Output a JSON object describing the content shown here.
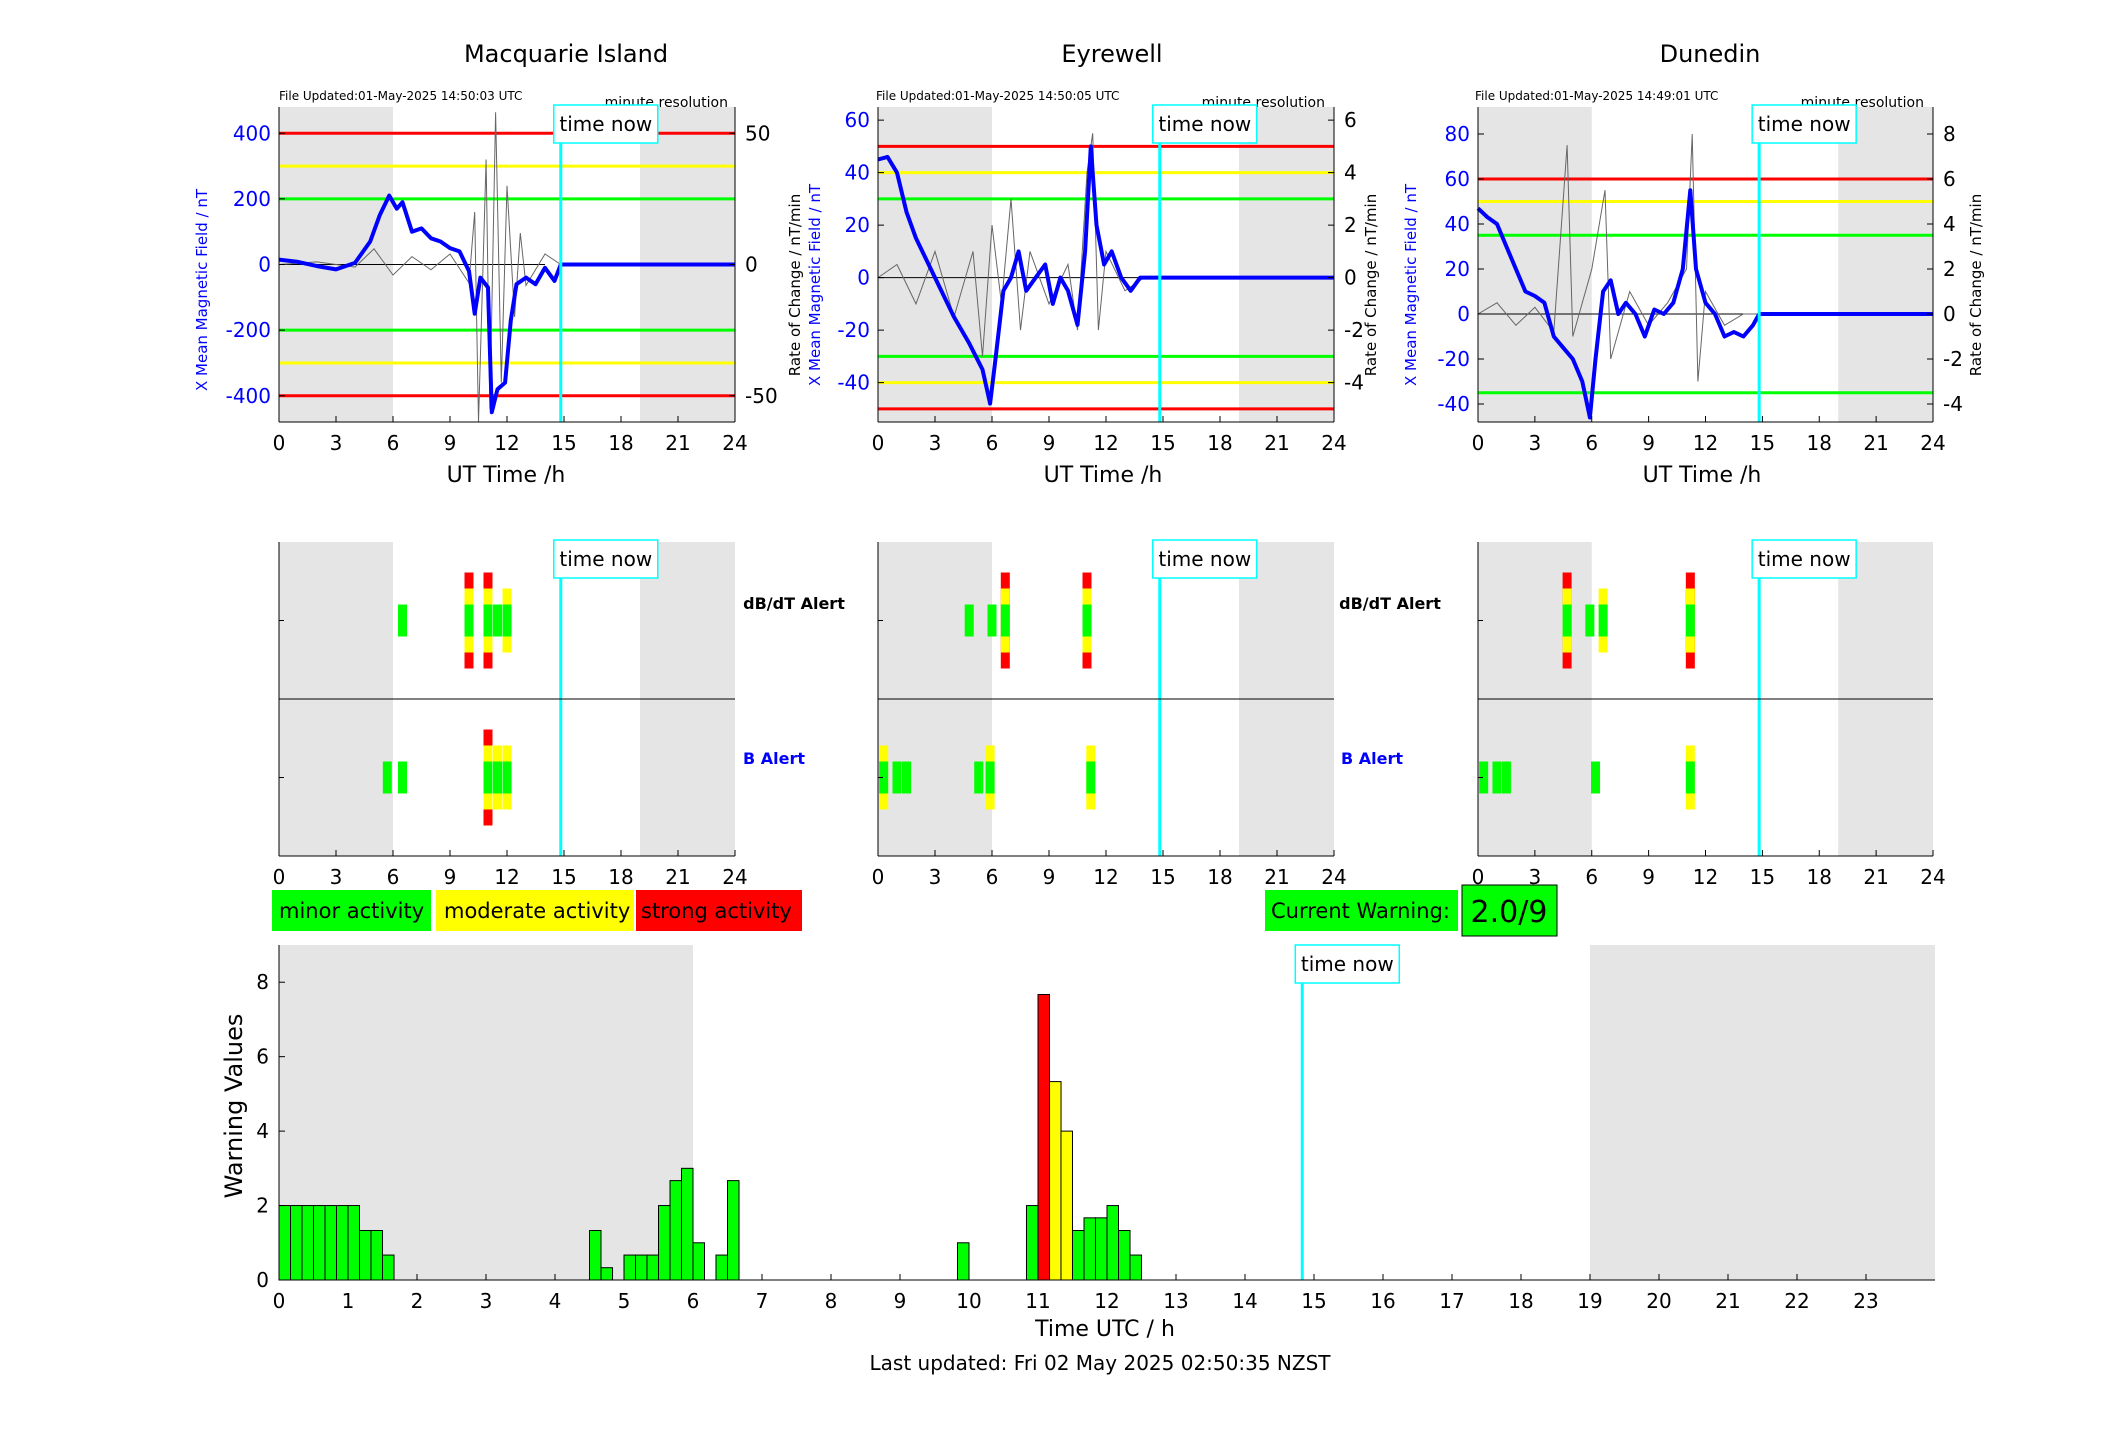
{
  "colors": {
    "red": "#ff0000",
    "yellow": "#ffff00",
    "green": "#00ff00",
    "blue": "#0000ff",
    "cyan": "#00ffff",
    "shade": "#e5e5e5"
  },
  "common": {
    "time_now_label": "time now",
    "time_now_hour": 14.83,
    "day_shade_hours": [
      [
        0,
        6
      ],
      [
        19,
        24
      ]
    ],
    "x_ticks": [
      0,
      3,
      6,
      9,
      12,
      15,
      18,
      21,
      24
    ],
    "x_label": "UT Time /h",
    "resolution_label": "minute resolution",
    "dbdt_alert_label": "dB/dT Alert",
    "b_alert_label": "B Alert"
  },
  "stations": [
    {
      "name": "Macquarie Island",
      "file_updated": "File Updated:01-May-2025 14:50:03 UTC",
      "left_ylabel": "X Mean Magnetic Field / nT",
      "right_ylabel": "",
      "ylim": [
        -480,
        480
      ],
      "y_ticks": [
        -400,
        -200,
        0,
        200,
        400
      ],
      "right_ylim": [
        -60,
        60
      ],
      "right_ticks": [
        -50,
        0,
        50
      ],
      "thresholds": {
        "red": 400,
        "yellow": 300,
        "green": 200
      },
      "field_trace": [
        [
          0,
          15
        ],
        [
          1,
          8
        ],
        [
          2,
          -5
        ],
        [
          3,
          -15
        ],
        [
          4,
          5
        ],
        [
          4.8,
          70
        ],
        [
          5.3,
          150
        ],
        [
          5.8,
          210
        ],
        [
          6.2,
          170
        ],
        [
          6.5,
          190
        ],
        [
          7,
          100
        ],
        [
          7.5,
          110
        ],
        [
          8,
          80
        ],
        [
          8.5,
          70
        ],
        [
          9,
          50
        ],
        [
          9.5,
          40
        ],
        [
          10,
          -20
        ],
        [
          10.3,
          -150
        ],
        [
          10.6,
          -40
        ],
        [
          11,
          -70
        ],
        [
          11.2,
          -450
        ],
        [
          11.5,
          -380
        ],
        [
          11.9,
          -360
        ],
        [
          12.2,
          -170
        ],
        [
          12.5,
          -60
        ],
        [
          13,
          -40
        ],
        [
          13.5,
          -60
        ],
        [
          14,
          -10
        ],
        [
          14.5,
          -50
        ],
        [
          14.83,
          0
        ],
        [
          24,
          0
        ]
      ],
      "rate_trace": [
        [
          0,
          0
        ],
        [
          2,
          1
        ],
        [
          4,
          -1
        ],
        [
          5,
          6
        ],
        [
          6,
          -4
        ],
        [
          7,
          3
        ],
        [
          8,
          -2
        ],
        [
          9,
          4
        ],
        [
          10,
          -7
        ],
        [
          10.3,
          20
        ],
        [
          10.5,
          -60
        ],
        [
          10.9,
          40
        ],
        [
          11.1,
          -55
        ],
        [
          11.4,
          58
        ],
        [
          11.7,
          -45
        ],
        [
          12,
          30
        ],
        [
          12.4,
          -20
        ],
        [
          12.7,
          12
        ],
        [
          13,
          -8
        ],
        [
          14,
          4
        ],
        [
          14.83,
          0
        ],
        [
          24,
          0
        ]
      ],
      "dbdt_alerts": [
        {
          "h": 6.5,
          "l": 1
        },
        {
          "h": 10,
          "l": 3
        },
        {
          "h": 11,
          "l": 3
        },
        {
          "h": 11.5,
          "l": 1
        },
        {
          "h": 12,
          "l": 2
        }
      ],
      "b_alerts": [
        {
          "h": 5.7,
          "l": 1
        },
        {
          "h": 6.5,
          "l": 1
        },
        {
          "h": 11,
          "l": 3
        },
        {
          "h": 11.5,
          "l": 2
        },
        {
          "h": 12,
          "l": 2
        }
      ]
    },
    {
      "name": "Eyrewell",
      "file_updated": "File Updated:01-May-2025 14:50:05 UTC",
      "left_ylabel": "X Mean Magnetic Field / nT",
      "right_ylabel": "Rate of Change / nT/min",
      "ylim": [
        -55,
        65
      ],
      "y_ticks": [
        -40,
        -20,
        0,
        20,
        40,
        60
      ],
      "right_ylim": [
        -5.5,
        6.5
      ],
      "right_ticks": [
        -4,
        -2,
        0,
        2,
        4,
        6
      ],
      "thresholds": {
        "red": 50,
        "yellow": 40,
        "green": 30
      },
      "thresholds_neg": {
        "red": -50,
        "yellow": -40,
        "green": -30
      },
      "field_trace": [
        [
          0,
          45
        ],
        [
          0.5,
          46
        ],
        [
          1,
          40
        ],
        [
          1.5,
          25
        ],
        [
          2,
          15
        ],
        [
          3,
          0
        ],
        [
          4,
          -15
        ],
        [
          4.8,
          -25
        ],
        [
          5.5,
          -35
        ],
        [
          5.9,
          -48
        ],
        [
          6.2,
          -30
        ],
        [
          6.6,
          -5
        ],
        [
          7,
          0
        ],
        [
          7.4,
          10
        ],
        [
          7.8,
          -5
        ],
        [
          8.3,
          0
        ],
        [
          8.8,
          5
        ],
        [
          9.2,
          -10
        ],
        [
          9.6,
          0
        ],
        [
          10,
          -5
        ],
        [
          10.5,
          -18
        ],
        [
          10.9,
          10
        ],
        [
          11.2,
          50
        ],
        [
          11.5,
          20
        ],
        [
          11.9,
          5
        ],
        [
          12.3,
          10
        ],
        [
          12.8,
          0
        ],
        [
          13.3,
          -5
        ],
        [
          13.8,
          0
        ],
        [
          14.83,
          0
        ],
        [
          24,
          0
        ]
      ],
      "rate_trace": [
        [
          0,
          0
        ],
        [
          1,
          0.5
        ],
        [
          2,
          -1
        ],
        [
          3,
          1
        ],
        [
          4,
          -1.5
        ],
        [
          5,
          1
        ],
        [
          5.5,
          -3
        ],
        [
          6,
          2
        ],
        [
          6.5,
          -1
        ],
        [
          7,
          3
        ],
        [
          7.5,
          -2
        ],
        [
          8,
          1
        ],
        [
          9,
          -1
        ],
        [
          10,
          0.5
        ],
        [
          10.5,
          -2
        ],
        [
          11,
          4
        ],
        [
          11.3,
          5.5
        ],
        [
          11.6,
          -2
        ],
        [
          12,
          1
        ],
        [
          13,
          -0.5
        ],
        [
          14,
          0
        ],
        [
          24,
          0
        ]
      ],
      "dbdt_alerts": [
        {
          "h": 4.8,
          "l": 1
        },
        {
          "h": 6,
          "l": 1
        },
        {
          "h": 6.7,
          "l": 3
        },
        {
          "h": 11,
          "l": 3
        }
      ],
      "b_alerts": [
        {
          "h": 0.3,
          "l": 2
        },
        {
          "h": 1,
          "l": 1
        },
        {
          "h": 1.5,
          "l": 1
        },
        {
          "h": 5.3,
          "l": 1
        },
        {
          "h": 5.9,
          "l": 2
        },
        {
          "h": 11.2,
          "l": 2
        }
      ]
    },
    {
      "name": "Dunedin",
      "file_updated": "File Updated:01-May-2025 14:49:01 UTC",
      "left_ylabel": "X Mean Magnetic Field / nT",
      "right_ylabel": "Rate of Change / nT/min",
      "ylim": [
        -48,
        92
      ],
      "y_ticks": [
        -40,
        -20,
        0,
        20,
        40,
        60,
        80
      ],
      "right_ylim": [
        -4.8,
        9.2
      ],
      "right_ticks": [
        -4,
        -2,
        0,
        2,
        4,
        6,
        8
      ],
      "thresholds": {
        "red": 60,
        "yellow": 50,
        "green": 35
      },
      "thresholds_neg": {
        "yellow": -50,
        "green": -35
      },
      "field_trace": [
        [
          0,
          47
        ],
        [
          0.5,
          43
        ],
        [
          1,
          40
        ],
        [
          1.5,
          30
        ],
        [
          2,
          20
        ],
        [
          2.5,
          10
        ],
        [
          3,
          8
        ],
        [
          3.5,
          5
        ],
        [
          4,
          -10
        ],
        [
          4.5,
          -15
        ],
        [
          5,
          -20
        ],
        [
          5.5,
          -30
        ],
        [
          5.9,
          -46
        ],
        [
          6.2,
          -20
        ],
        [
          6.6,
          10
        ],
        [
          7,
          15
        ],
        [
          7.4,
          0
        ],
        [
          7.8,
          5
        ],
        [
          8.3,
          0
        ],
        [
          8.8,
          -10
        ],
        [
          9.3,
          2
        ],
        [
          9.8,
          0
        ],
        [
          10.3,
          5
        ],
        [
          10.8,
          20
        ],
        [
          11.2,
          55
        ],
        [
          11.5,
          20
        ],
        [
          12,
          5
        ],
        [
          12.5,
          0
        ],
        [
          13,
          -10
        ],
        [
          13.5,
          -8
        ],
        [
          14,
          -10
        ],
        [
          14.5,
          -5
        ],
        [
          14.83,
          0
        ],
        [
          24,
          0
        ]
      ],
      "rate_trace": [
        [
          0,
          0
        ],
        [
          1,
          0.5
        ],
        [
          2,
          -0.5
        ],
        [
          3,
          0.3
        ],
        [
          4,
          -0.8
        ],
        [
          4.7,
          7.5
        ],
        [
          5,
          -1
        ],
        [
          6,
          2
        ],
        [
          6.7,
          5.5
        ],
        [
          7,
          -2
        ],
        [
          8,
          1
        ],
        [
          9,
          -0.5
        ],
        [
          10,
          0.5
        ],
        [
          11,
          2
        ],
        [
          11.3,
          8
        ],
        [
          11.6,
          -3
        ],
        [
          12,
          1
        ],
        [
          13,
          -0.5
        ],
        [
          14,
          0
        ],
        [
          24,
          0
        ]
      ],
      "dbdt_alerts": [
        {
          "h": 4.7,
          "l": 3
        },
        {
          "h": 5.9,
          "l": 1
        },
        {
          "h": 6.6,
          "l": 2
        },
        {
          "h": 11.2,
          "l": 3
        }
      ],
      "b_alerts": [
        {
          "h": 0.3,
          "l": 1
        },
        {
          "h": 1,
          "l": 1
        },
        {
          "h": 1.5,
          "l": 1
        },
        {
          "h": 6.2,
          "l": 1
        },
        {
          "h": 11.2,
          "l": 2
        }
      ]
    }
  ],
  "legend": {
    "minor": "minor activity",
    "moderate": "moderate activity",
    "strong": "strong activity"
  },
  "current_warning": {
    "label": "Current Warning:",
    "value": "2.0/9"
  },
  "chart_data": {
    "type": "bar",
    "xlabel": "Time UTC / h",
    "ylabel": "Warning Values",
    "ylim": [
      0,
      9
    ],
    "y_ticks": [
      0,
      2,
      4,
      6,
      8
    ],
    "x_ticks": [
      0,
      1,
      2,
      3,
      4,
      5,
      6,
      7,
      8,
      9,
      10,
      11,
      12,
      13,
      14,
      15,
      16,
      17,
      18,
      19,
      20,
      21,
      22,
      23
    ],
    "xlim": [
      0,
      24
    ],
    "time_now_hour": 14.83,
    "day_shade_hours": [
      [
        0,
        6
      ],
      [
        19,
        24
      ]
    ],
    "bin_width_h": 0.1667,
    "bars": [
      {
        "x": 0.0,
        "v": 2,
        "l": 1
      },
      {
        "x": 0.167,
        "v": 2,
        "l": 1
      },
      {
        "x": 0.333,
        "v": 2,
        "l": 1
      },
      {
        "x": 0.5,
        "v": 2,
        "l": 1
      },
      {
        "x": 0.667,
        "v": 2,
        "l": 1
      },
      {
        "x": 0.833,
        "v": 2,
        "l": 1
      },
      {
        "x": 1.0,
        "v": 2,
        "l": 1
      },
      {
        "x": 1.167,
        "v": 1.33,
        "l": 1
      },
      {
        "x": 1.333,
        "v": 1.33,
        "l": 1
      },
      {
        "x": 1.5,
        "v": 0.67,
        "l": 1
      },
      {
        "x": 4.5,
        "v": 1.33,
        "l": 1
      },
      {
        "x": 4.667,
        "v": 0.33,
        "l": 1
      },
      {
        "x": 5.0,
        "v": 0.67,
        "l": 1
      },
      {
        "x": 5.167,
        "v": 0.67,
        "l": 1
      },
      {
        "x": 5.333,
        "v": 0.67,
        "l": 1
      },
      {
        "x": 5.5,
        "v": 2,
        "l": 1
      },
      {
        "x": 5.667,
        "v": 2.67,
        "l": 1
      },
      {
        "x": 5.833,
        "v": 3,
        "l": 1
      },
      {
        "x": 6.0,
        "v": 1,
        "l": 1
      },
      {
        "x": 6.333,
        "v": 0.67,
        "l": 1
      },
      {
        "x": 6.5,
        "v": 2.67,
        "l": 1
      },
      {
        "x": 9.833,
        "v": 1,
        "l": 1
      },
      {
        "x": 10.833,
        "v": 2,
        "l": 1
      },
      {
        "x": 11.0,
        "v": 7.67,
        "l": 3
      },
      {
        "x": 11.167,
        "v": 5.33,
        "l": 2
      },
      {
        "x": 11.333,
        "v": 4,
        "l": 2
      },
      {
        "x": 11.5,
        "v": 1.33,
        "l": 1
      },
      {
        "x": 11.667,
        "v": 1.67,
        "l": 1
      },
      {
        "x": 11.833,
        "v": 1.67,
        "l": 1
      },
      {
        "x": 12.0,
        "v": 2,
        "l": 1
      },
      {
        "x": 12.167,
        "v": 1.33,
        "l": 1
      },
      {
        "x": 12.333,
        "v": 0.67,
        "l": 1
      }
    ]
  },
  "footer": {
    "last_updated": "Last updated: Fri 02 May 2025 02:50:35 NZST"
  }
}
